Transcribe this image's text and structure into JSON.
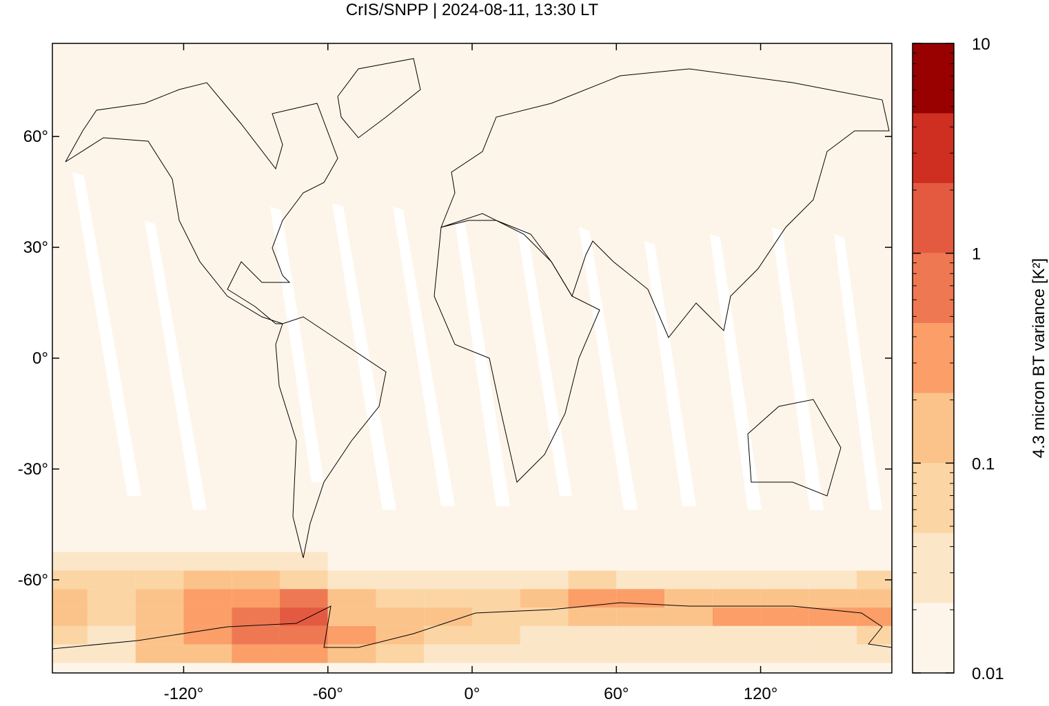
{
  "chart_data": {
    "type": "heatmap",
    "title": "CrIS/SNPP | 2024-08-11, 13:30 LT",
    "colorbar_label": "4.3 micron BT variance [K²]",
    "xlim": [
      -174.6,
      174.6
    ],
    "ylim": [
      -85.2,
      85.2
    ],
    "xticks": [
      {
        "value": -120,
        "label": "-120°"
      },
      {
        "value": -60,
        "label": "-60°"
      },
      {
        "value": 0,
        "label": "0°"
      },
      {
        "value": 60,
        "label": "60°"
      },
      {
        "value": 120,
        "label": "120°"
      }
    ],
    "yticks": [
      {
        "value": 60,
        "label": "60°"
      },
      {
        "value": 30,
        "label": "30°"
      },
      {
        "value": 0,
        "label": "0°"
      },
      {
        "value": -30,
        "label": "-30°"
      },
      {
        "value": -60,
        "label": "-60°"
      }
    ],
    "x": [
      -170,
      -150,
      -130,
      -110,
      -90,
      -70,
      -50,
      -30,
      -10,
      10,
      30,
      50,
      70,
      90,
      110,
      130,
      150,
      170
    ],
    "y": [
      -55,
      -60,
      -65,
      -70,
      -75,
      -80
    ],
    "z": [
      [
        0.03,
        0.03,
        0.03,
        0.03,
        0.03,
        0.03,
        0.02,
        0.02,
        0.02,
        0.02,
        0.02,
        0.02,
        0.02,
        0.02,
        0.02,
        0.02,
        0.02,
        0.02
      ],
      [
        0.05,
        0.05,
        0.06,
        0.1,
        0.1,
        0.05,
        0.03,
        0.03,
        0.03,
        0.03,
        0.04,
        0.05,
        0.04,
        0.04,
        0.03,
        0.04,
        0.04,
        0.05
      ],
      [
        0.1,
        0.06,
        0.15,
        0.3,
        0.4,
        0.6,
        0.1,
        0.06,
        0.05,
        0.06,
        0.1,
        0.3,
        0.3,
        0.15,
        0.2,
        0.15,
        0.15,
        0.15
      ],
      [
        0.15,
        0.05,
        0.2,
        0.3,
        0.5,
        1.2,
        0.2,
        0.1,
        0.1,
        0.06,
        0.08,
        0.15,
        0.1,
        0.2,
        0.3,
        0.3,
        0.3,
        0.4
      ],
      [
        0.05,
        0.03,
        0.2,
        0.3,
        0.6,
        0.6,
        0.3,
        0.1,
        0.06,
        0.05,
        0.04,
        0.04,
        0.04,
        0.04,
        0.04,
        0.04,
        0.04,
        0.05
      ],
      [
        0.03,
        0.03,
        0.1,
        0.2,
        0.4,
        0.4,
        0.2,
        0.05,
        0.03,
        0.03,
        0.03,
        0.03,
        0.03,
        0.03,
        0.03,
        0.03,
        0.03,
        0.03
      ]
    ],
    "colorbar": {
      "log": true,
      "lim": [
        0.01,
        10
      ],
      "ticks": [
        0.01,
        0.1,
        1,
        10
      ],
      "colors": [
        "#fef5ea",
        "#fbe6c8",
        "#fbd5a4",
        "#fbc38a",
        "#fb9e68",
        "#ee7852",
        "#e45a40",
        "#cf2f20",
        "#990000"
      ]
    }
  }
}
